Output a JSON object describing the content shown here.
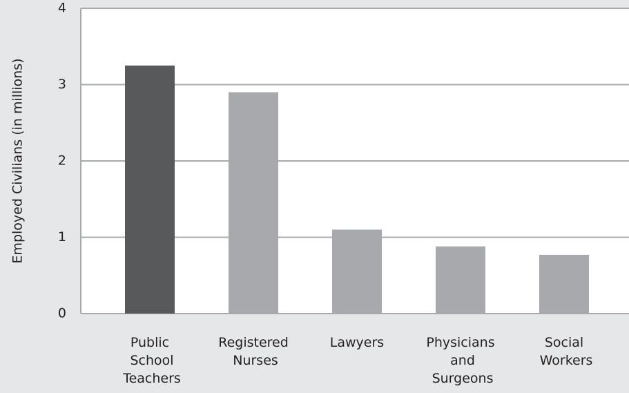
{
  "chart_data": {
    "type": "bar",
    "ylabel": "Employed Civilians (in millions)",
    "categories": [
      "Public School Teachers",
      "Registered Nurses",
      "Lawyers",
      "Physicians and Surgeons",
      "Social Workers"
    ],
    "values": [
      3.25,
      2.9,
      1.1,
      0.88,
      0.77
    ],
    "colors": [
      "#58595b",
      "#a7a9ac",
      "#a7a9ac",
      "#a7a9ac",
      "#a7a9ac"
    ],
    "ylim": [
      0,
      4
    ],
    "yticks": [
      0,
      1,
      2,
      3,
      4
    ],
    "grid": true
  }
}
